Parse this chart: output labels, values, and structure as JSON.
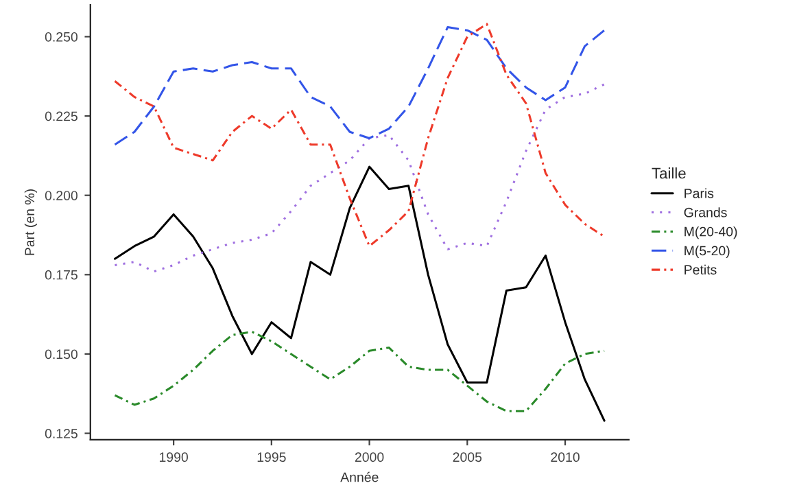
{
  "chart_data": {
    "type": "line",
    "xlabel": "Année",
    "ylabel": "Part (en %)",
    "legend_title": "Taille",
    "legend": "right",
    "grid": false,
    "x": [
      1987,
      1988,
      1989,
      1990,
      1991,
      1992,
      1993,
      1994,
      1995,
      1996,
      1997,
      1998,
      1999,
      2000,
      2001,
      2002,
      2003,
      2004,
      2005,
      2006,
      2007,
      2008,
      2009,
      2010,
      2011,
      2012
    ],
    "xlim": [
      1985.75,
      2013.25
    ],
    "xticks": [
      1990,
      1995,
      2000,
      2005,
      2010
    ],
    "ylim": [
      0.123,
      0.26
    ],
    "yticks": [
      0.125,
      {
        "value": 0.15,
        "label": "0.150"
      },
      0.175,
      {
        "value": 0.2,
        "label": "0.200"
      },
      0.225,
      {
        "value": 0.25,
        "label": "0.250"
      }
    ],
    "series": [
      {
        "name": "Paris",
        "color": "#000000",
        "line_style": "solid",
        "values": [
          0.18,
          0.184,
          0.187,
          0.194,
          0.187,
          0.177,
          0.162,
          0.15,
          0.16,
          0.155,
          0.179,
          0.175,
          0.196,
          0.209,
          0.202,
          0.203,
          0.175,
          0.153,
          0.141,
          0.141,
          0.17,
          0.171,
          0.181,
          0.16,
          0.142,
          0.129
        ]
      },
      {
        "name": "Grands",
        "color": "#9f6fe0",
        "line_style": "dotted",
        "values": [
          0.178,
          0.179,
          0.176,
          0.178,
          0.181,
          0.183,
          0.185,
          0.186,
          0.188,
          0.195,
          0.203,
          0.207,
          0.211,
          0.218,
          0.219,
          0.211,
          0.194,
          0.183,
          0.185,
          0.184,
          0.198,
          0.214,
          0.227,
          0.231,
          0.232,
          0.235
        ]
      },
      {
        "name": "M(20-40)",
        "color": "#2a8a2a",
        "line_style": "dashdot",
        "values": [
          0.137,
          0.134,
          0.136,
          0.14,
          0.145,
          0.151,
          0.156,
          0.157,
          0.154,
          0.15,
          0.146,
          0.142,
          0.146,
          0.151,
          0.152,
          0.146,
          0.145,
          0.145,
          0.14,
          0.135,
          0.132,
          0.132,
          0.139,
          0.147,
          0.15,
          0.151
        ]
      },
      {
        "name": "M(5-20)",
        "color": "#3355e8",
        "line_style": "dashed",
        "values": [
          0.216,
          0.22,
          0.228,
          0.239,
          0.24,
          0.239,
          0.241,
          0.242,
          0.24,
          0.24,
          0.231,
          0.228,
          0.22,
          0.218,
          0.221,
          0.228,
          0.24,
          0.253,
          0.252,
          0.249,
          0.24,
          0.234,
          0.23,
          0.234,
          0.247,
          0.252
        ]
      },
      {
        "name": "Petits",
        "color": "#ee3a2a",
        "line_style": "dashdot",
        "values": [
          0.236,
          0.231,
          0.228,
          0.215,
          0.213,
          0.211,
          0.22,
          0.225,
          0.221,
          0.227,
          0.216,
          0.216,
          0.199,
          0.184,
          0.189,
          0.195,
          0.218,
          0.237,
          0.25,
          0.254,
          0.238,
          0.229,
          0.207,
          0.197,
          0.191,
          0.187
        ]
      }
    ]
  }
}
